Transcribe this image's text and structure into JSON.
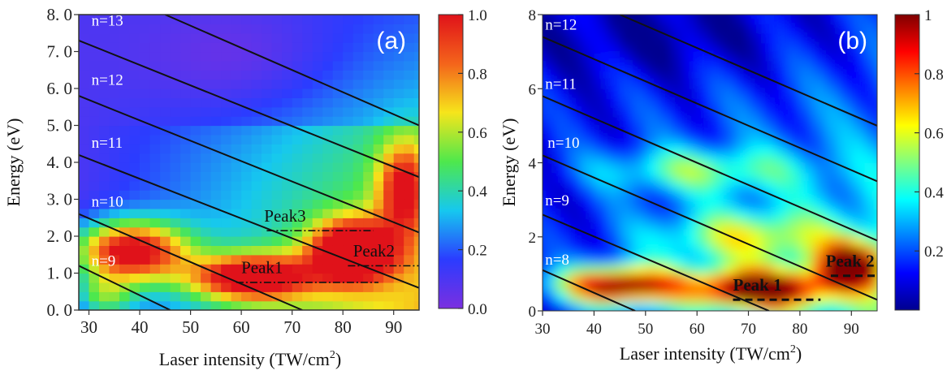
{
  "chart_data": [
    {
      "type": "heatmap",
      "panel_label": "(a)",
      "xlabel": "Laser intensity (TW/cm",
      "xlabel_sup": "2",
      "xlabel_tail": ")",
      "ylabel": "Energy (eV)",
      "xlim": [
        28,
        95
      ],
      "ylim": [
        0,
        8
      ],
      "x_ticks": [
        30,
        40,
        50,
        60,
        70,
        80,
        90
      ],
      "x_tick_labels": [
        "30",
        "40",
        "50",
        "60",
        "70",
        "80",
        "90"
      ],
      "y_ticks": [
        0,
        1,
        2,
        3,
        4,
        5,
        6,
        7,
        8
      ],
      "y_tick_labels": [
        "0. 0",
        "1. 0",
        "2. 0",
        "3. 0",
        "4. 0",
        "5. 0",
        "6. 0",
        "7. 0",
        "8. 0"
      ],
      "colorbar_ticks": [
        0.0,
        0.2,
        0.4,
        0.6,
        0.8,
        1.0
      ],
      "colorbar_labels": [
        "0.0",
        "0.2",
        "0.4",
        "0.6",
        "0.8",
        "1.0"
      ],
      "colormap": [
        "#7b2fe0",
        "#2b3cff",
        "#16c8ef",
        "#4ee84c",
        "#f6e51b",
        "#f4641b",
        "#e0121a"
      ],
      "photon_order_lines": [
        {
          "n": 9,
          "label": "n=9",
          "label_x": 30.5,
          "label_y": 1.2,
          "points": [
            [
              28,
              1.2
            ],
            [
              46,
              0.0
            ]
          ]
        },
        {
          "n": 10,
          "label": "n=10",
          "label_x": 30.5,
          "label_y": 2.8,
          "points": [
            [
              28,
              2.6
            ],
            [
              72,
              0.0
            ]
          ]
        },
        {
          "n": 11,
          "label": "n=11",
          "label_x": 30.5,
          "label_y": 4.4,
          "points": [
            [
              28,
              4.2
            ],
            [
              95,
              0.6
            ]
          ]
        },
        {
          "n": 12,
          "label": "n=12",
          "label_x": 30.5,
          "label_y": 6.1,
          "points": [
            [
              28,
              5.8
            ],
            [
              95,
              2.1
            ]
          ]
        },
        {
          "n": 13,
          "label": "n=13",
          "label_x": 30.5,
          "label_y": 7.7,
          "points": [
            [
              28,
              7.3
            ],
            [
              95,
              3.6
            ]
          ]
        },
        {
          "n": 14,
          "label": "",
          "label_x": 0,
          "label_y": 0,
          "points": [
            [
              45,
              8.0
            ],
            [
              95,
              5.0
            ]
          ]
        }
      ],
      "peaks": [
        {
          "label": "Peak1",
          "x_range": [
            59,
            87
          ],
          "y": 0.75,
          "label_x": 60,
          "label_y": 1.0
        },
        {
          "label": "Peak2",
          "x_range": [
            81,
            95
          ],
          "y": 1.2,
          "label_x": 82,
          "label_y": 1.45
        },
        {
          "label": "Peak3",
          "x_range": [
            65,
            86
          ],
          "y": 2.15,
          "label_x": 64.5,
          "label_y": 2.4
        }
      ]
    },
    {
      "type": "heatmap",
      "panel_label": "(b)",
      "xlabel": "Laser intensity (TW/cm",
      "xlabel_sup": "2",
      "xlabel_tail": ")",
      "ylabel": "Energy (eV)",
      "xlim": [
        30,
        95
      ],
      "ylim": [
        0,
        8
      ],
      "x_ticks": [
        30,
        40,
        50,
        60,
        70,
        80,
        90
      ],
      "x_tick_labels": [
        "30",
        "40",
        "50",
        "60",
        "70",
        "80",
        "90"
      ],
      "y_ticks": [
        0,
        2,
        4,
        6,
        8
      ],
      "y_tick_labels": [
        "0",
        "2",
        "4",
        "6",
        "8"
      ],
      "colorbar_ticks": [
        0.2,
        0.4,
        0.6,
        0.8,
        1.0
      ],
      "colorbar_labels": [
        "0.2",
        "0.4",
        "0.6",
        "0.8",
        "1"
      ],
      "colormap": [
        "#00008f",
        "#0000ff",
        "#0080ff",
        "#00ffff",
        "#80ff80",
        "#ffff00",
        "#ff8000",
        "#ff0000",
        "#800000"
      ],
      "photon_order_lines": [
        {
          "n": 8,
          "label": "n=8",
          "label_x": 30.5,
          "label_y": 1.25,
          "points": [
            [
              30,
              1.1
            ],
            [
              48,
              0.0
            ]
          ]
        },
        {
          "n": 9,
          "label": "n=9",
          "label_x": 30.5,
          "label_y": 2.85,
          "points": [
            [
              30,
              2.6
            ],
            [
              74,
              0.0
            ]
          ]
        },
        {
          "n": 10,
          "label": "n=10",
          "label_x": 31,
          "label_y": 4.4,
          "points": [
            [
              30,
              4.2
            ],
            [
              95,
              0.3
            ]
          ]
        },
        {
          "n": 11,
          "label": "n=11",
          "label_x": 30.5,
          "label_y": 6.0,
          "points": [
            [
              30,
              5.8
            ],
            [
              95,
              1.9
            ]
          ]
        },
        {
          "n": 12,
          "label": "n=12",
          "label_x": 30.5,
          "label_y": 7.6,
          "points": [
            [
              30,
              7.4
            ],
            [
              95,
              3.5
            ]
          ]
        },
        {
          "n": 13,
          "label": "",
          "label_x": 0,
          "label_y": 0,
          "points": [
            [
              45,
              8.0
            ],
            [
              95,
              5.0
            ]
          ]
        }
      ],
      "peaks": [
        {
          "label": "Peak 1",
          "x_range": [
            67,
            84
          ],
          "y": 0.3,
          "label_x": 67,
          "label_y": 0.55
        },
        {
          "label": "Peak 2",
          "x_range": [
            86,
            95
          ],
          "y": 0.95,
          "label_x": 85,
          "label_y": 1.2
        }
      ]
    }
  ]
}
